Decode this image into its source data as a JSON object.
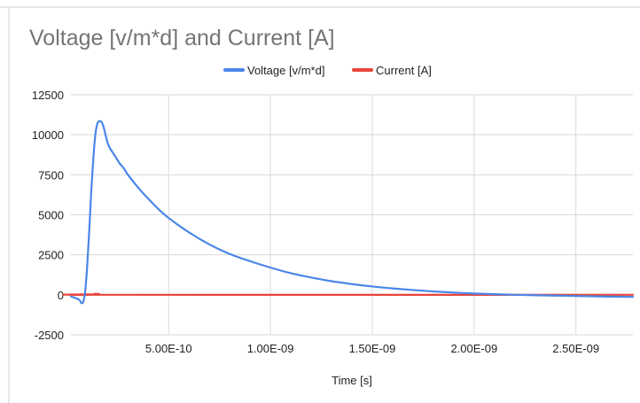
{
  "chart_data": {
    "type": "line",
    "title": "Voltage [v/m*d]  and Current [A]",
    "xlabel": "Time [s]",
    "ylabel": "",
    "xlim": [
      2e-11,
      2.78e-09
    ],
    "ylim": [
      -2500,
      12500
    ],
    "yticks": [
      -2500,
      0,
      2500,
      5000,
      7500,
      10000,
      12500
    ],
    "ytick_labels": [
      "-2500",
      "0",
      "2500",
      "5000",
      "7500",
      "10000",
      "12500"
    ],
    "xticks": [
      5e-10,
      1e-09,
      1.5e-09,
      2e-09,
      2.5e-09
    ],
    "xtick_labels": [
      "5.00E-10",
      "1.00E-09",
      "1.50E-09",
      "2.00E-09",
      "2.50E-09"
    ],
    "grid": true,
    "legend_position": "top-center",
    "series": [
      {
        "name": "Voltage [v/m*d]",
        "color": "#4a86e8",
        "x": [
          2e-11,
          6e-11,
          7e-11,
          8e-11,
          9e-11,
          1e-10,
          1.1e-10,
          1.2e-10,
          1.3e-10,
          1.4e-10,
          1.5e-10,
          1.6e-10,
          1.7e-10,
          1.8e-10,
          1.9e-10,
          2e-10,
          2.1e-10,
          2.2e-10,
          2.4e-10,
          2.6e-10,
          2.8e-10,
          3e-10,
          3.5e-10,
          4e-10,
          4.5e-10,
          5e-10,
          6e-10,
          7e-10,
          8e-10,
          9e-10,
          1e-09,
          1.1e-09,
          1.2e-09,
          1.3e-09,
          1.4e-09,
          1.5e-09,
          1.6e-09,
          1.7e-09,
          1.8e-09,
          1.9e-09,
          2e-09,
          2.2e-09,
          2.4e-09,
          2.6e-09,
          2.78e-09
        ],
        "values": [
          -100,
          -300,
          -500,
          -450,
          200,
          1800,
          4000,
          6500,
          8500,
          10000,
          10700,
          10850,
          10800,
          10500,
          10000,
          9500,
          9200,
          9000,
          8600,
          8200,
          7900,
          7500,
          6700,
          6000,
          5350,
          4800,
          3900,
          3150,
          2550,
          2100,
          1700,
          1350,
          1080,
          850,
          670,
          520,
          400,
          300,
          210,
          140,
          80,
          0,
          -50,
          -100,
          -130
        ]
      },
      {
        "name": "Current [A]",
        "color": "#e8453c",
        "x": [
          2e-11,
          1.2e-10,
          1.4e-10,
          1.6e-10,
          1.8e-10,
          2.78e-09
        ],
        "values": [
          0,
          0,
          60,
          40,
          0,
          0
        ]
      }
    ]
  }
}
